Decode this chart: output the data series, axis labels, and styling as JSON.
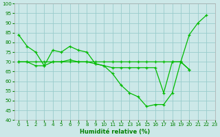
{
  "title": "",
  "xlabel": "Humidité relative (%)",
  "ylabel": "",
  "background_color": "#cce8e8",
  "grid_color": "#99cccc",
  "line_color": "#00bb00",
  "ylim": [
    40,
    100
  ],
  "xlim": [
    -0.5,
    23
  ],
  "yticks": [
    40,
    45,
    50,
    55,
    60,
    65,
    70,
    75,
    80,
    85,
    90,
    95,
    100
  ],
  "xticks": [
    0,
    1,
    2,
    3,
    4,
    5,
    6,
    7,
    8,
    9,
    10,
    11,
    12,
    13,
    14,
    15,
    16,
    17,
    18,
    19,
    20,
    21,
    22,
    23
  ],
  "series": [
    {
      "x": [
        0,
        1,
        2,
        3,
        4,
        5,
        6,
        7,
        8,
        9,
        10,
        11,
        12,
        13,
        14,
        15,
        16,
        17,
        18,
        19,
        20,
        21,
        22
      ],
      "y": [
        84,
        78,
        75,
        68,
        76,
        75,
        78,
        76,
        75,
        69,
        68,
        64,
        58,
        54,
        52,
        47,
        48,
        48,
        54,
        70,
        84,
        90,
        94
      ]
    },
    {
      "x": [
        0,
        1,
        2,
        3,
        4,
        5,
        6,
        7,
        8,
        9,
        10,
        11,
        12,
        13,
        14,
        15,
        16,
        17,
        18,
        19,
        20
      ],
      "y": [
        70,
        70,
        70,
        70,
        70,
        70,
        70,
        70,
        70,
        70,
        70,
        70,
        70,
        70,
        70,
        70,
        70,
        70,
        70,
        70,
        66
      ]
    },
    {
      "x": [
        0,
        1,
        2,
        3,
        4,
        5,
        6,
        7,
        8,
        9,
        10,
        11,
        12,
        13,
        14,
        15,
        16,
        17,
        18,
        19,
        20
      ],
      "y": [
        70,
        70,
        68,
        68,
        70,
        70,
        71,
        70,
        70,
        69,
        68,
        67,
        67,
        67,
        67,
        67,
        67,
        54,
        70,
        70,
        66
      ]
    }
  ]
}
